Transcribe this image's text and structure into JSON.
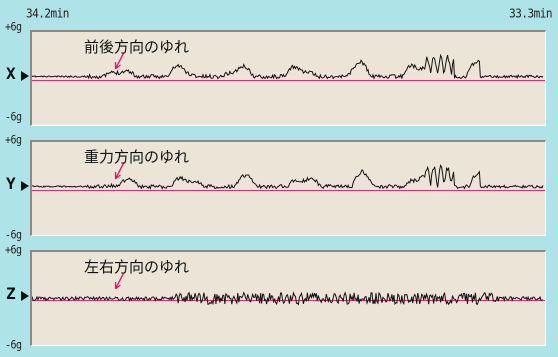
{
  "header": {
    "time_left": "34.2min",
    "time_right": "33.3min"
  },
  "colors": {
    "background": "#aee3e8",
    "plot_bg": "#ece4d6",
    "zero_line": "#e0106a",
    "trace": "#111111",
    "pointer": "#e0106a"
  },
  "scale": {
    "top_label": "+6g",
    "bottom_label": "-6g"
  },
  "panels": [
    {
      "axis": "X",
      "title": "前後方向のゆれ",
      "pointer": "pink-arrow-icon"
    },
    {
      "axis": "Y",
      "title": "重力方向のゆれ",
      "pointer": "pink-arrow-icon"
    },
    {
      "axis": "Z",
      "title": "左右方向のゆれ",
      "pointer": "pink-arrow-icon"
    }
  ]
}
